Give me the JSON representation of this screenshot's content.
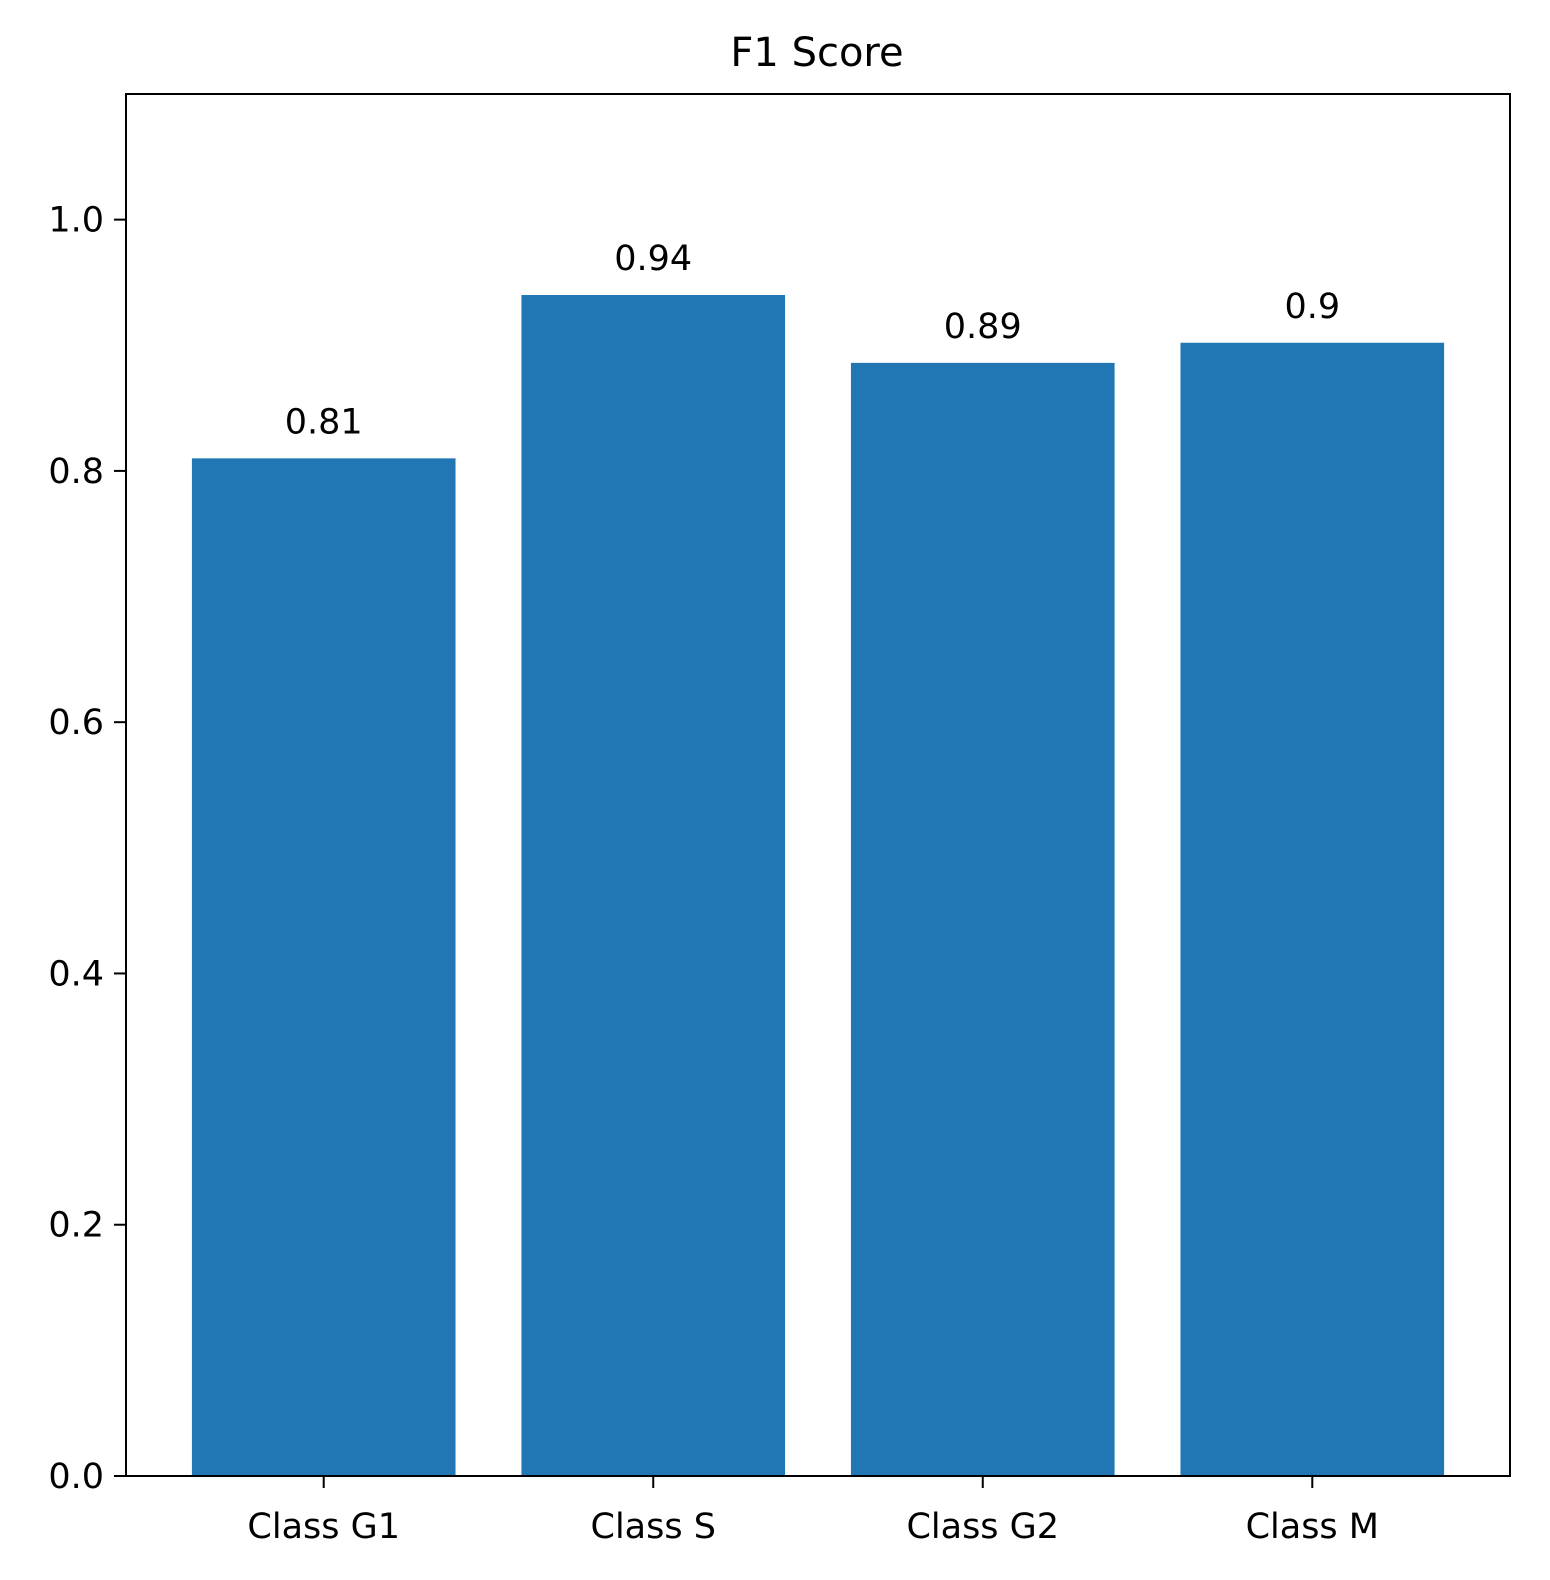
{
  "chart_data": {
    "type": "bar",
    "title": "F1 Score",
    "xlabel": "",
    "ylabel": "",
    "categories": [
      "Class G1",
      "Class S",
      "Class G2",
      "Class M"
    ],
    "values": [
      0.81,
      0.94,
      0.886,
      0.902
    ],
    "data_labels": [
      "0.81",
      "0.94",
      "0.89",
      "0.9"
    ],
    "ylim": [
      0,
      1.1
    ],
    "yticks": [
      0.0,
      0.2,
      0.4,
      0.6,
      0.8,
      1.0
    ],
    "ytick_labels": [
      "0.0",
      "0.2",
      "0.4",
      "0.6",
      "0.8",
      "1.0"
    ],
    "grid": false,
    "bar_color": "#2077b4"
  }
}
